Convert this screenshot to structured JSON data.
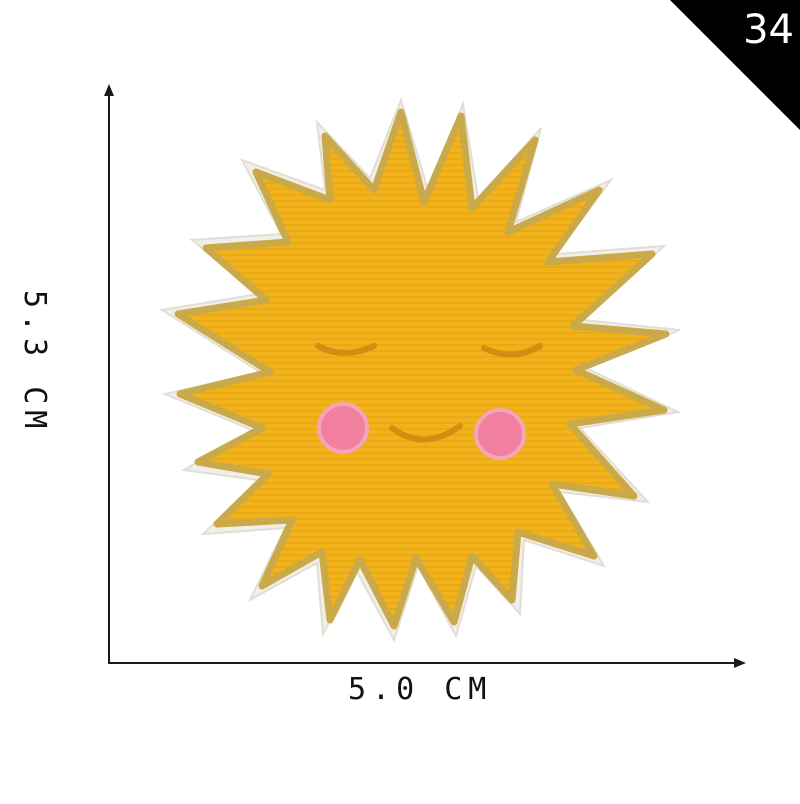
{
  "product": {
    "badge_number": "34",
    "width_label": "5.0 CM",
    "height_label": "5.3 CM",
    "subject": "embroidered smiling sun patch"
  },
  "colors": {
    "badge_background": "#000000",
    "sun_fill": "#f2b21c",
    "gold_thread": "#c9a94a",
    "white_edge": "#f1efe9",
    "cheek_pink": "#f07fa0",
    "axis": "#1a1a1a"
  }
}
